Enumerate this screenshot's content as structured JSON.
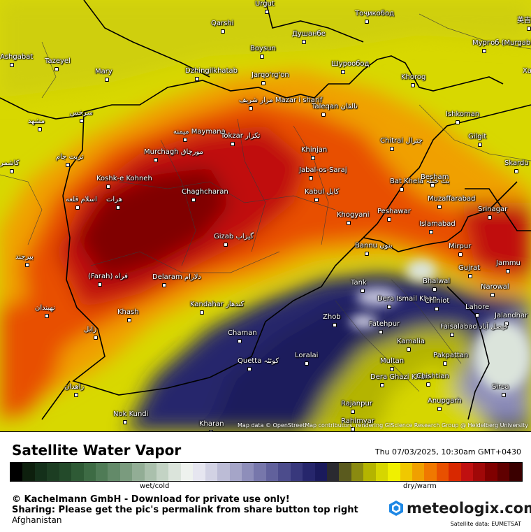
{
  "title": "Satellite Water Vapor",
  "datetime": "Thu 07/03/2025, 10:30am GMT+0430",
  "scale": {
    "wet_label": "wet/cold",
    "dry_label": "dry/warm",
    "colors": [
      "#000000",
      "#0d1f0d",
      "#14301a",
      "#1c3d22",
      "#234a2a",
      "#2e5a35",
      "#3d6b44",
      "#4f7b56",
      "#638a69",
      "#7a9b7e",
      "#92ad95",
      "#aac0ac",
      "#c3d3c4",
      "#dbe4db",
      "#eef2ee",
      "#e6e6f0",
      "#d2d2e4",
      "#bcbcd6",
      "#a5a5c8",
      "#8e8eba",
      "#7777ab",
      "#61619c",
      "#4c4c8c",
      "#38387c",
      "#26266c",
      "#1a1a5c",
      "#2a2a30",
      "#5a5a1e",
      "#8a8a10",
      "#b4b400",
      "#d6d600",
      "#f0f000",
      "#f0c800",
      "#f0a000",
      "#f07800",
      "#e85000",
      "#d82800",
      "#c01010",
      "#a00808",
      "#800000",
      "#600000",
      "#3a0000"
    ]
  },
  "copyright": "© Kachelmann GmbH - Download for private use only!",
  "sharing": "Sharing: Please get the pic's permalink from share button top right",
  "region": "Afghanistan",
  "brand": {
    "name": "meteologix.com",
    "icon": "meteologix-hex-icon",
    "color": "#1e88e5"
  },
  "satellite_data": "Satellite data: EUMETSAT",
  "attribution": "Map data © OpenStreetMap contributors, rendering GIScience Research Group @ Heidelberg University",
  "cities": [
    {
      "name": "Qarshi"
    },
    {
      "name": "Urgut"
    },
    {
      "name": "Тоҷикобод"
    },
    {
      "name": "Душанбе"
    },
    {
      "name": "Boysun"
    },
    {
      "name": "Jarqo'rg'on"
    },
    {
      "name": "Шурообод"
    },
    {
      "name": "Мургоб (Murgab)"
    },
    {
      "name": "Tazeyel"
    },
    {
      "name": "Mary"
    },
    {
      "name": "Dzhingilkhatab"
    },
    {
      "name": "Khorog"
    },
    {
      "name": "مزار شریف Mazar i sharif"
    },
    {
      "name": "Taleqan تالقان"
    },
    {
      "name": "مشهد"
    },
    {
      "name": "سرخس"
    },
    {
      "name": "Ishkoman"
    },
    {
      "name": "میمنه Maymana"
    },
    {
      "name": "Tokzar تکزار"
    },
    {
      "name": "Gilgit"
    },
    {
      "name": "تربت جام"
    },
    {
      "name": "Chitral چترال"
    },
    {
      "name": "Murchagh مورچاق"
    },
    {
      "name": "Khinjan"
    },
    {
      "name": "Skardu"
    },
    {
      "name": "Jabal-os-Saraj"
    },
    {
      "name": "Koshk-e Kohneh"
    },
    {
      "name": "Bat Khela بٹ خیلہ"
    },
    {
      "name": "Besham"
    },
    {
      "name": "Kabul کابل"
    },
    {
      "name": "Chaghcharan"
    },
    {
      "name": "Muzaffarabad"
    },
    {
      "name": "اسلام قلعه"
    },
    {
      "name": "هرات"
    },
    {
      "name": "Peshawar"
    },
    {
      "name": "Srinagar"
    },
    {
      "name": "Khogyani"
    },
    {
      "name": "Islamabad"
    },
    {
      "name": "Gizab گیزاب"
    },
    {
      "name": "Bannu بنوں"
    },
    {
      "name": "Mirpur"
    },
    {
      "name": "بیرجند"
    },
    {
      "name": "Jammu"
    },
    {
      "name": "Gujrat"
    },
    {
      "name": "(Farah) فراه"
    },
    {
      "name": "Delaram دلارام"
    },
    {
      "name": "Tank"
    },
    {
      "name": "Bhalwal"
    },
    {
      "name": "Narowal"
    },
    {
      "name": "Dera Ismail Khan"
    },
    {
      "name": "Chiniot"
    },
    {
      "name": "Lahore"
    },
    {
      "name": "Kandahar کندهار"
    },
    {
      "name": "نهبندان"
    },
    {
      "name": "Khash"
    },
    {
      "name": "Jalandhar"
    },
    {
      "name": "Zhob"
    },
    {
      "name": "Faisalabad فیصل آباد"
    },
    {
      "name": "Fatehpur"
    },
    {
      "name": "زابل"
    },
    {
      "name": "Chaman"
    },
    {
      "name": "Kamalia"
    },
    {
      "name": "Loralai"
    },
    {
      "name": "Pakpattan"
    },
    {
      "name": "Quetta کوئٹہ"
    },
    {
      "name": "Multan"
    },
    {
      "name": "Sirsa"
    },
    {
      "name": "Dera Ghazi Khan"
    },
    {
      "name": "Chishtian"
    },
    {
      "name": "زاهدان"
    },
    {
      "name": "Anupgarh"
    },
    {
      "name": "Rajanpur"
    },
    {
      "name": "Nok Kundi"
    },
    {
      "name": "Kharan"
    },
    {
      "name": "Rahimyar"
    },
    {
      "name": "Ashgabat"
    },
    {
      "name": "英吉"
    },
    {
      "name": "Хаб"
    },
    {
      "name": "كاشمر"
    }
  ]
}
